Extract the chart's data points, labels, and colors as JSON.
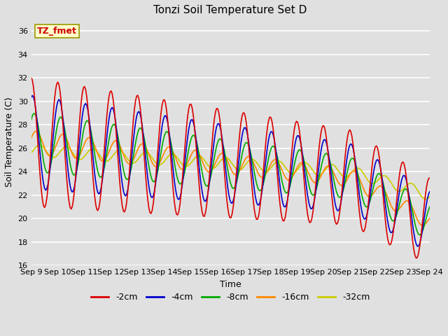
{
  "title": "Tonzi Soil Temperature Set D",
  "xlabel": "Time",
  "ylabel": "Soil Temperature (C)",
  "annotation": "TZ_fmet",
  "annotation_color": "#cc0000",
  "annotation_bg": "#ffffcc",
  "annotation_border": "#999900",
  "ylim": [
    16,
    37
  ],
  "yticks": [
    16,
    18,
    20,
    22,
    24,
    26,
    28,
    30,
    32,
    34,
    36
  ],
  "series_colors": [
    "#dd0000",
    "#0000cc",
    "#00aa00",
    "#ff8800",
    "#cccc00"
  ],
  "series_labels": [
    "-2cm",
    "-4cm",
    "-8cm",
    "-16cm",
    "-32cm"
  ],
  "bg_color": "#e0e0e0",
  "grid_color": "#ffffff",
  "figsize": [
    6.4,
    4.8
  ],
  "dpi": 100
}
